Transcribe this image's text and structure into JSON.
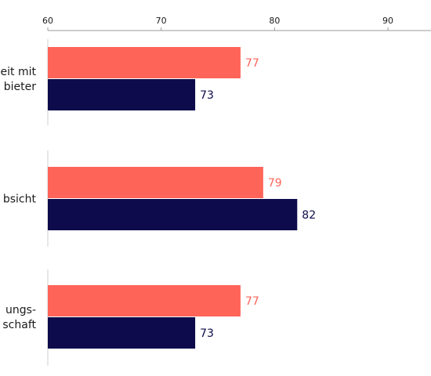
{
  "chart_data": {
    "type": "bar",
    "orientation": "horizontal",
    "title": "",
    "xlabel": "",
    "ylabel": "",
    "xlim": [
      60,
      93.8
    ],
    "ticks": [
      60,
      70,
      80,
      90
    ],
    "tick_labels": [
      "60",
      "70",
      "80",
      "90"
    ],
    "grid": false,
    "categories": [
      [
        "eit mit",
        "bieter"
      ],
      [
        "bsicht"
      ],
      [
        "ungs-",
        "schaft"
      ]
    ],
    "series": [
      {
        "color": "#ff6459",
        "values": [
          77,
          79,
          77
        ]
      },
      {
        "color": "#0d0b4b",
        "values": [
          73,
          82,
          73
        ]
      }
    ],
    "value_labels": [
      [
        "77",
        "79",
        "77"
      ],
      [
        "73",
        "82",
        "73"
      ]
    ]
  }
}
